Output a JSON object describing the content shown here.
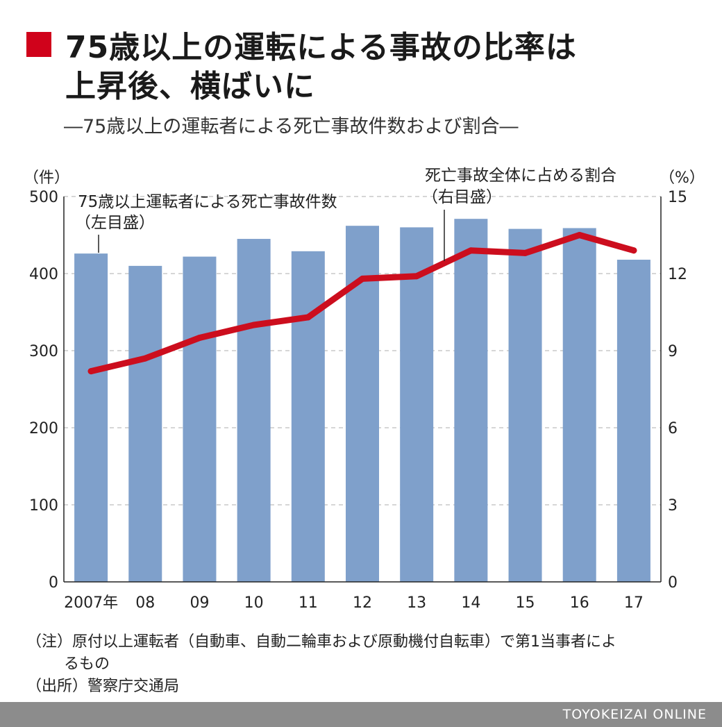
{
  "title": {
    "line1": "75歳以上の運転による事故の比率は",
    "line2": "上昇後、横ばいに"
  },
  "subtitle": "―75歳以上の運転者による死亡事故件数および割合―",
  "left_unit": "（件）",
  "right_unit": "（%）",
  "annotations": {
    "bars": [
      "75歳以上運転者による死亡事故件数",
      "（左目盛）"
    ],
    "line": [
      "死亡事故全体に占める割合",
      "（右目盛）"
    ]
  },
  "footnotes": {
    "note1": "（注）原付以上運転者（自動車、自動二輪車および原動機付自転車）で第1当事者によ",
    "note2": "るもの",
    "source": "（出所）警察庁交通局"
  },
  "brand": "TOYOKEIZAI ONLINE",
  "colors": {
    "bar": "#7fa0cb",
    "line": "#cc0e1e",
    "accent": "#d0021b",
    "grid": "#bdbdbd"
  },
  "chart_data": {
    "type": "bar",
    "categories": [
      "2007年",
      "08",
      "09",
      "10",
      "11",
      "12",
      "13",
      "14",
      "15",
      "16",
      "17"
    ],
    "series": [
      {
        "name": "75歳以上運転者による死亡事故件数",
        "type": "bar",
        "axis": "left",
        "values": [
          426,
          410,
          422,
          445,
          429,
          462,
          460,
          471,
          458,
          459,
          418
        ]
      },
      {
        "name": "死亡事故全体に占める割合",
        "type": "line",
        "axis": "right",
        "values": [
          8.2,
          8.7,
          9.5,
          10.0,
          10.3,
          11.8,
          11.9,
          12.9,
          12.8,
          13.5,
          12.9
        ]
      }
    ],
    "y_left": {
      "lim": [
        0,
        500
      ],
      "ticks": [
        0,
        100,
        200,
        300,
        400,
        500
      ]
    },
    "y_right": {
      "lim": [
        0,
        15
      ],
      "ticks": [
        0,
        3,
        6,
        9,
        12,
        15
      ]
    },
    "grid": true
  }
}
